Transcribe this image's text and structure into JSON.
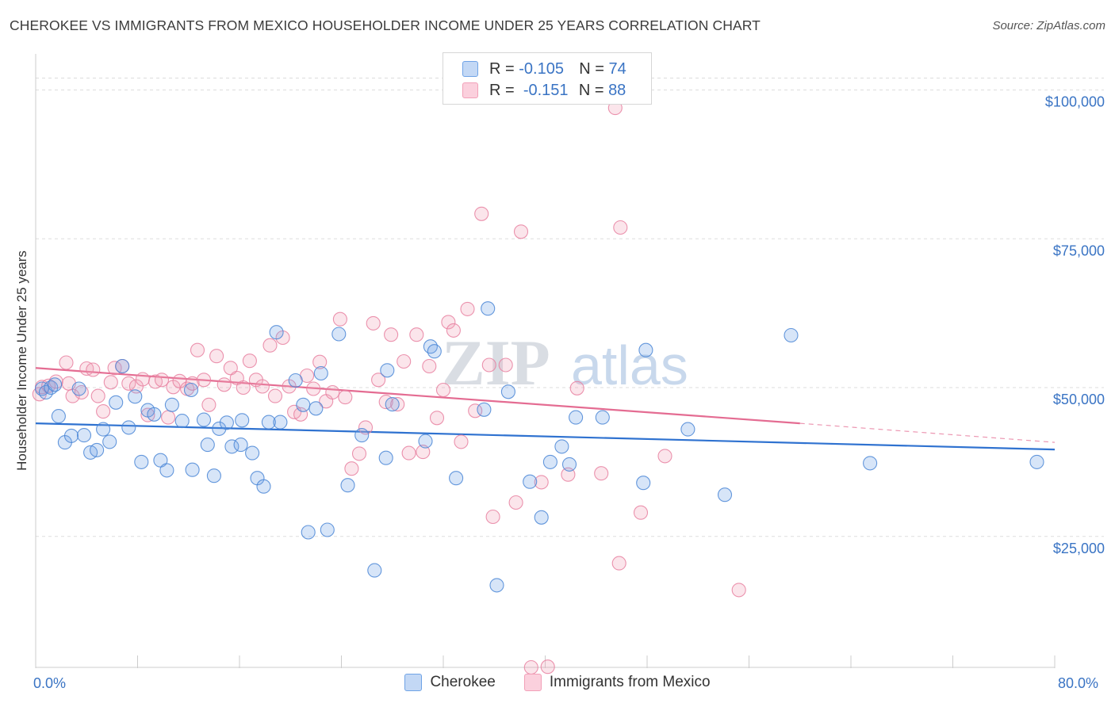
{
  "title": "CHEROKEE VS IMMIGRANTS FROM MEXICO HOUSEHOLDER INCOME UNDER 25 YEARS CORRELATION CHART",
  "source": "Source: ZipAtlas.com",
  "watermark": {
    "zip": "ZIP",
    "atlas": "atlas"
  },
  "legend_top": {
    "rows": [
      {
        "r_label": "R =",
        "r_value": "-0.105",
        "n_label": "N =",
        "n_value": "74"
      },
      {
        "r_label": "R =",
        "r_value": "-0.151",
        "n_label": "N =",
        "n_value": "88"
      }
    ]
  },
  "chart_data": {
    "type": "scatter",
    "ylabel": "Householder Income Under 25 years",
    "x_tick_labels": {
      "min": "0.0%",
      "max": "80.0%"
    },
    "xlim": [
      0,
      80
    ],
    "ylim": [
      3000,
      105000
    ],
    "y_ticks": [
      {
        "value": 25000,
        "label": "$25,000"
      },
      {
        "value": 50000,
        "label": "$50,000"
      },
      {
        "value": 75000,
        "label": "$75,000"
      },
      {
        "value": 100000,
        "label": "$100,000"
      }
    ],
    "colors": {
      "cherokee": "#6fa3e6",
      "cherokee_line": "#2f72d0",
      "mexico": "#f2a0b8",
      "mexico_line": "#e46c92",
      "axis_text": "#3a74c4"
    },
    "series": [
      {
        "name": "Cherokee",
        "r": -0.105,
        "n": 74,
        "trend": {
          "x0": 0,
          "y0": 44000,
          "x1": 80,
          "y1": 39600
        },
        "points": [
          [
            0.5,
            49800
          ],
          [
            0.8,
            49200
          ],
          [
            1.2,
            50000
          ],
          [
            1.5,
            50500
          ],
          [
            1.8,
            45200
          ],
          [
            2.3,
            40800
          ],
          [
            2.8,
            41900
          ],
          [
            3.4,
            49800
          ],
          [
            3.8,
            42000
          ],
          [
            4.3,
            39100
          ],
          [
            4.8,
            39500
          ],
          [
            5.3,
            43000
          ],
          [
            5.8,
            40900
          ],
          [
            6.3,
            47500
          ],
          [
            6.8,
            53600
          ],
          [
            7.3,
            43300
          ],
          [
            7.8,
            48500
          ],
          [
            8.3,
            37500
          ],
          [
            8.8,
            46200
          ],
          [
            9.3,
            45500
          ],
          [
            9.8,
            37800
          ],
          [
            10.3,
            36100
          ],
          [
            10.7,
            47100
          ],
          [
            11.5,
            44400
          ],
          [
            12.2,
            49600
          ],
          [
            12.3,
            36200
          ],
          [
            13.2,
            44600
          ],
          [
            13.5,
            40400
          ],
          [
            14.0,
            35200
          ],
          [
            14.4,
            43100
          ],
          [
            15.0,
            44100
          ],
          [
            15.4,
            40100
          ],
          [
            16.1,
            40400
          ],
          [
            16.2,
            44500
          ],
          [
            17.0,
            39000
          ],
          [
            17.4,
            34800
          ],
          [
            17.9,
            33400
          ],
          [
            18.3,
            44200
          ],
          [
            18.9,
            59300
          ],
          [
            19.2,
            44200
          ],
          [
            20.4,
            51200
          ],
          [
            21.0,
            47100
          ],
          [
            21.4,
            25700
          ],
          [
            22.0,
            46500
          ],
          [
            22.4,
            52400
          ],
          [
            22.9,
            26100
          ],
          [
            23.8,
            59000
          ],
          [
            24.5,
            33600
          ],
          [
            25.6,
            42000
          ],
          [
            26.6,
            19300
          ],
          [
            27.5,
            38200
          ],
          [
            27.6,
            52900
          ],
          [
            28.0,
            47200
          ],
          [
            30.6,
            41000
          ],
          [
            31.0,
            56900
          ],
          [
            31.3,
            56100
          ],
          [
            33.0,
            34800
          ],
          [
            35.2,
            46300
          ],
          [
            35.5,
            63300
          ],
          [
            36.2,
            16800
          ],
          [
            37.1,
            49300
          ],
          [
            38.8,
            34200
          ],
          [
            39.7,
            28200
          ],
          [
            40.4,
            37500
          ],
          [
            41.3,
            40100
          ],
          [
            41.9,
            37100
          ],
          [
            42.4,
            45000
          ],
          [
            44.5,
            45000
          ],
          [
            47.7,
            34000
          ],
          [
            47.9,
            56300
          ],
          [
            51.2,
            43000
          ],
          [
            54.1,
            32000
          ],
          [
            59.3,
            58800
          ],
          [
            65.5,
            37300
          ],
          [
            78.6,
            37500
          ]
        ]
      },
      {
        "name": "Immigrants from Mexico",
        "r": -0.151,
        "n": 88,
        "trend": {
          "x0": 0,
          "y0": 53300,
          "x1": 60,
          "y1": 44000,
          "dash_to_x": 80,
          "dash_to_y": 40800
        },
        "points": [
          [
            0.3,
            48900
          ],
          [
            0.5,
            50100
          ],
          [
            1.0,
            50300
          ],
          [
            1.6,
            51000
          ],
          [
            2.4,
            54200
          ],
          [
            2.6,
            50700
          ],
          [
            2.9,
            48600
          ],
          [
            3.6,
            49200
          ],
          [
            4.0,
            53200
          ],
          [
            4.5,
            53000
          ],
          [
            4.9,
            48600
          ],
          [
            5.3,
            46000
          ],
          [
            5.9,
            50900
          ],
          [
            6.2,
            53300
          ],
          [
            6.8,
            53600
          ],
          [
            7.3,
            50700
          ],
          [
            7.9,
            50200
          ],
          [
            8.4,
            51400
          ],
          [
            8.8,
            45400
          ],
          [
            9.4,
            51000
          ],
          [
            9.9,
            51300
          ],
          [
            10.4,
            45000
          ],
          [
            10.8,
            50100
          ],
          [
            11.3,
            51100
          ],
          [
            11.9,
            49800
          ],
          [
            12.3,
            50700
          ],
          [
            12.7,
            56300
          ],
          [
            13.2,
            51300
          ],
          [
            13.6,
            47100
          ],
          [
            14.2,
            55300
          ],
          [
            14.8,
            50500
          ],
          [
            15.3,
            53300
          ],
          [
            15.8,
            51600
          ],
          [
            16.3,
            50000
          ],
          [
            16.8,
            54500
          ],
          [
            17.3,
            51300
          ],
          [
            17.8,
            50200
          ],
          [
            18.4,
            57100
          ],
          [
            18.8,
            48600
          ],
          [
            19.4,
            58400
          ],
          [
            19.9,
            50200
          ],
          [
            20.3,
            45900
          ],
          [
            20.8,
            45500
          ],
          [
            21.3,
            52000
          ],
          [
            21.8,
            49800
          ],
          [
            22.3,
            54300
          ],
          [
            22.8,
            47700
          ],
          [
            23.3,
            49200
          ],
          [
            23.9,
            61500
          ],
          [
            24.3,
            48400
          ],
          [
            24.8,
            36400
          ],
          [
            25.4,
            38900
          ],
          [
            25.9,
            43300
          ],
          [
            26.5,
            60800
          ],
          [
            26.9,
            51300
          ],
          [
            27.5,
            47600
          ],
          [
            27.9,
            58900
          ],
          [
            28.4,
            47200
          ],
          [
            28.9,
            54400
          ],
          [
            29.3,
            39000
          ],
          [
            29.9,
            58900
          ],
          [
            30.4,
            39200
          ],
          [
            30.9,
            53600
          ],
          [
            31.5,
            44900
          ],
          [
            32.0,
            49600
          ],
          [
            32.4,
            61000
          ],
          [
            32.8,
            59600
          ],
          [
            33.4,
            40900
          ],
          [
            33.9,
            63200
          ],
          [
            34.5,
            46100
          ],
          [
            35.0,
            79200
          ],
          [
            35.9,
            28300
          ],
          [
            36.9,
            53800
          ],
          [
            37.7,
            30700
          ],
          [
            38.1,
            76200
          ],
          [
            38.9,
            3000
          ],
          [
            39.7,
            34100
          ],
          [
            40.2,
            3100
          ],
          [
            41.8,
            35400
          ],
          [
            42.5,
            49900
          ],
          [
            44.4,
            35600
          ],
          [
            45.5,
            97000
          ],
          [
            45.8,
            20500
          ],
          [
            45.9,
            76900
          ],
          [
            47.5,
            29000
          ],
          [
            49.4,
            38500
          ],
          [
            55.2,
            16000
          ],
          [
            35.6,
            53800
          ]
        ]
      }
    ]
  },
  "bottom_legend": [
    {
      "label": "Cherokee"
    },
    {
      "label": "Immigrants from Mexico"
    }
  ]
}
